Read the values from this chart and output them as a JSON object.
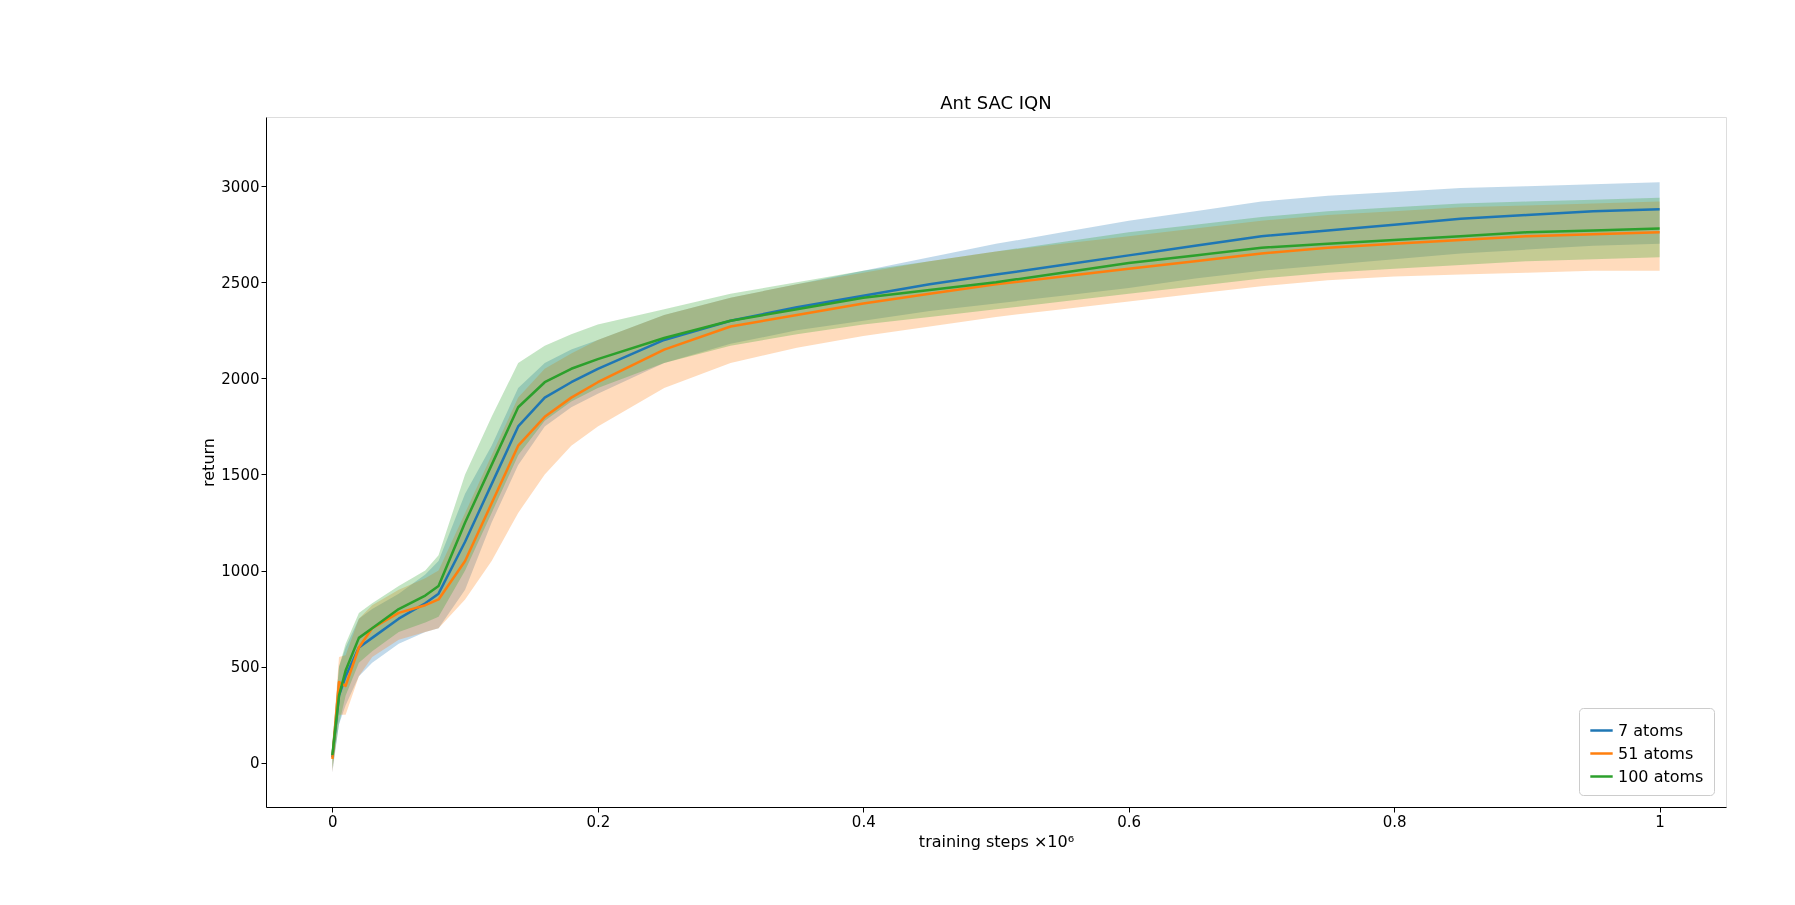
{
  "chart_data": {
    "type": "line",
    "title": "Ant SAC IQN",
    "xlabel": "training steps ×10⁶",
    "ylabel": "return",
    "x": [
      0,
      0.005,
      0.01,
      0.02,
      0.03,
      0.05,
      0.07,
      0.08,
      0.1,
      0.12,
      0.14,
      0.16,
      0.18,
      0.2,
      0.25,
      0.3,
      0.35,
      0.4,
      0.45,
      0.5,
      0.55,
      0.6,
      0.65,
      0.7,
      0.75,
      0.8,
      0.85,
      0.9,
      0.95,
      1.0
    ],
    "series": [
      {
        "name": "7 atoms",
        "color": "#1f77b4",
        "values": [
          30,
          350,
          450,
          600,
          650,
          750,
          830,
          880,
          1150,
          1450,
          1750,
          1900,
          1980,
          2050,
          2200,
          2300,
          2370,
          2430,
          2490,
          2540,
          2590,
          2640,
          2690,
          2740,
          2770,
          2800,
          2830,
          2850,
          2870,
          2880
        ],
        "lower": [
          -50,
          200,
          300,
          450,
          520,
          620,
          680,
          700,
          900,
          1250,
          1550,
          1750,
          1850,
          1920,
          2080,
          2180,
          2250,
          2300,
          2350,
          2390,
          2430,
          2470,
          2520,
          2560,
          2590,
          2620,
          2650,
          2670,
          2690,
          2700
        ],
        "upper": [
          100,
          500,
          600,
          750,
          800,
          880,
          980,
          1050,
          1400,
          1650,
          1950,
          2080,
          2150,
          2200,
          2330,
          2420,
          2490,
          2560,
          2630,
          2700,
          2760,
          2820,
          2870,
          2920,
          2950,
          2970,
          2990,
          3000,
          3010,
          3020
        ]
      },
      {
        "name": "51 atoms",
        "color": "#ff7f0e",
        "values": [
          20,
          420,
          400,
          600,
          700,
          780,
          820,
          850,
          1050,
          1350,
          1650,
          1800,
          1900,
          1980,
          2150,
          2270,
          2330,
          2390,
          2440,
          2490,
          2530,
          2570,
          2610,
          2650,
          2680,
          2700,
          2720,
          2740,
          2750,
          2760
        ],
        "lower": [
          -50,
          250,
          250,
          450,
          550,
          640,
          680,
          700,
          850,
          1050,
          1300,
          1500,
          1650,
          1750,
          1950,
          2080,
          2160,
          2220,
          2270,
          2320,
          2360,
          2400,
          2440,
          2480,
          2510,
          2530,
          2540,
          2550,
          2560,
          2560
        ],
        "upper": [
          80,
          550,
          560,
          750,
          820,
          900,
          960,
          1000,
          1300,
          1600,
          1900,
          2050,
          2130,
          2200,
          2330,
          2420,
          2490,
          2550,
          2610,
          2660,
          2700,
          2740,
          2780,
          2820,
          2850,
          2870,
          2890,
          2900,
          2910,
          2920
        ]
      },
      {
        "name": "100 atoms",
        "color": "#2ca02c",
        "values": [
          40,
          350,
          480,
          650,
          700,
          800,
          870,
          920,
          1250,
          1550,
          1850,
          1980,
          2050,
          2100,
          2210,
          2300,
          2360,
          2420,
          2460,
          2500,
          2550,
          2600,
          2640,
          2680,
          2700,
          2720,
          2740,
          2760,
          2770,
          2780
        ],
        "lower": [
          -30,
          200,
          350,
          520,
          580,
          680,
          730,
          760,
          1000,
          1300,
          1600,
          1780,
          1880,
          1950,
          2080,
          2170,
          2230,
          2280,
          2320,
          2360,
          2400,
          2440,
          2480,
          2520,
          2550,
          2570,
          2590,
          2610,
          2620,
          2630
        ],
        "upper": [
          110,
          500,
          620,
          780,
          830,
          920,
          1000,
          1080,
          1500,
          1800,
          2080,
          2170,
          2230,
          2280,
          2360,
          2440,
          2500,
          2560,
          2610,
          2660,
          2710,
          2760,
          2800,
          2840,
          2870,
          2890,
          2910,
          2920,
          2930,
          2940
        ]
      }
    ],
    "xlim": [
      -0.05,
      1.05
    ],
    "xticks": [
      0,
      0.2,
      0.4,
      0.6,
      0.8,
      1
    ],
    "ylim": [
      -230,
      3360
    ],
    "yticks": [
      0,
      500,
      1000,
      1500,
      2000,
      2500,
      3000
    ],
    "grid": false,
    "legend": "bottom right",
    "marker": "none",
    "line_style": "solid"
  }
}
